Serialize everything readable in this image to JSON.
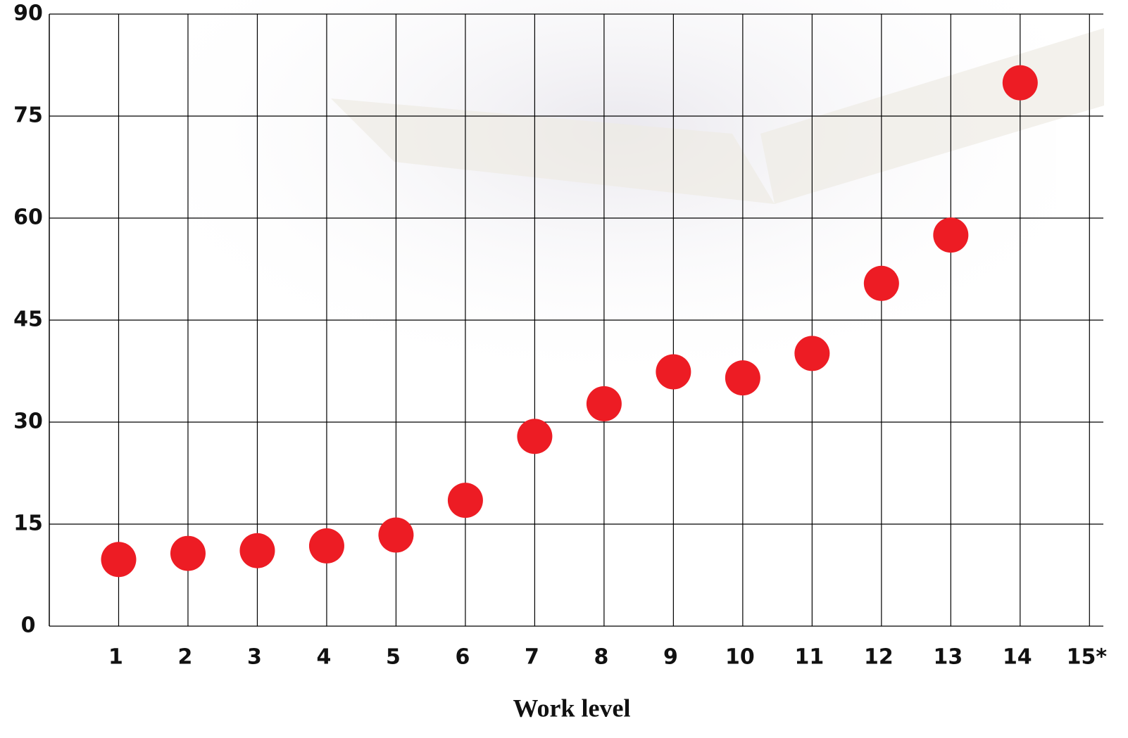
{
  "chart_data": {
    "type": "scatter",
    "x_label": "Work level",
    "x": [
      1,
      2,
      3,
      4,
      5,
      6,
      7,
      8,
      9,
      10,
      11,
      12,
      13,
      14
    ],
    "values": [
      9.8,
      10.7,
      11.1,
      11.8,
      13.4,
      18.5,
      27.9,
      32.7,
      37.4,
      36.5,
      40.1,
      50.4,
      57.5,
      79.9
    ],
    "color": "#ed1c24",
    "xlim": [
      0,
      15.2
    ],
    "xticks": [
      1,
      2,
      3,
      4,
      5,
      6,
      7,
      8,
      9,
      10,
      11,
      12,
      13,
      14,
      {
        "value": 15,
        "label": "15*"
      }
    ],
    "ylim": [
      0,
      90
    ],
    "yticks": [
      0,
      15,
      30,
      45,
      60,
      75,
      90
    ],
    "grid": true
  }
}
